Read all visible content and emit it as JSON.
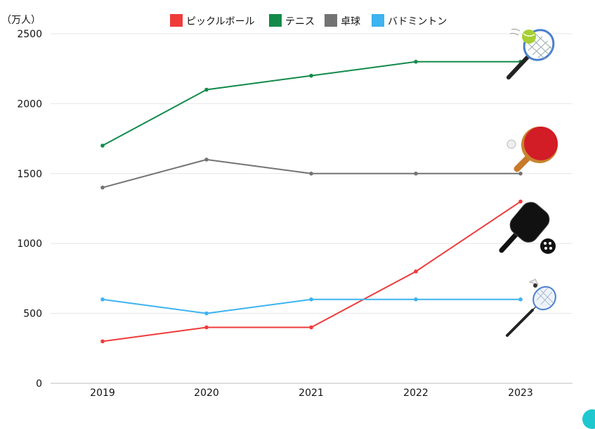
{
  "chart_data": {
    "type": "line",
    "unit_label": "（万人）",
    "categories": [
      "2019",
      "2020",
      "2021",
      "2022",
      "2023"
    ],
    "ylim": [
      0,
      2500
    ],
    "yticks": [
      0,
      500,
      1000,
      1500,
      2000,
      2500
    ],
    "grid": true,
    "legend_position": "top-center",
    "series": [
      {
        "name": "ピックルボール",
        "color": "#f03a3a",
        "values": [
          300,
          400,
          400,
          800,
          1300
        ],
        "icon": "pickleball-paddle-icon"
      },
      {
        "name": "テニス",
        "color": "#128a4a",
        "values": [
          1700,
          2100,
          2200,
          2300,
          2300
        ],
        "icon": "tennis-racket-icon"
      },
      {
        "name": "卓球",
        "color": "#737373",
        "values": [
          1400,
          1600,
          1500,
          1500,
          1500
        ],
        "icon": "ping-pong-paddle-icon"
      },
      {
        "name": "バドミントン",
        "color": "#3db3f0",
        "values": [
          600,
          500,
          600,
          600,
          600
        ],
        "icon": "badminton-racket-icon"
      }
    ]
  }
}
